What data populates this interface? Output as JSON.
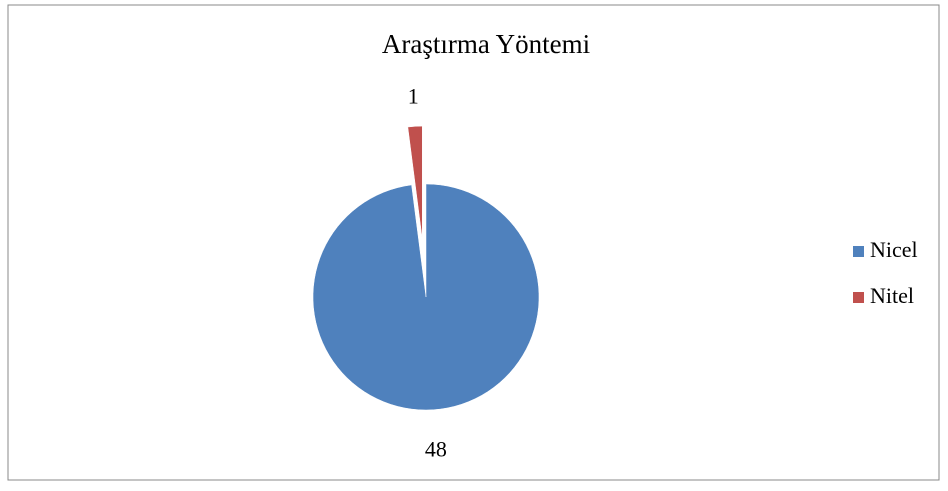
{
  "chart_data": {
    "type": "pie",
    "title": "Araştırma Yöntemi",
    "categories": [
      "Nicel",
      "Nitel"
    ],
    "values": [
      48,
      1
    ],
    "colors": [
      "#4f81bd",
      "#c0504d"
    ],
    "explode": [
      false,
      true
    ],
    "legend": "right"
  }
}
